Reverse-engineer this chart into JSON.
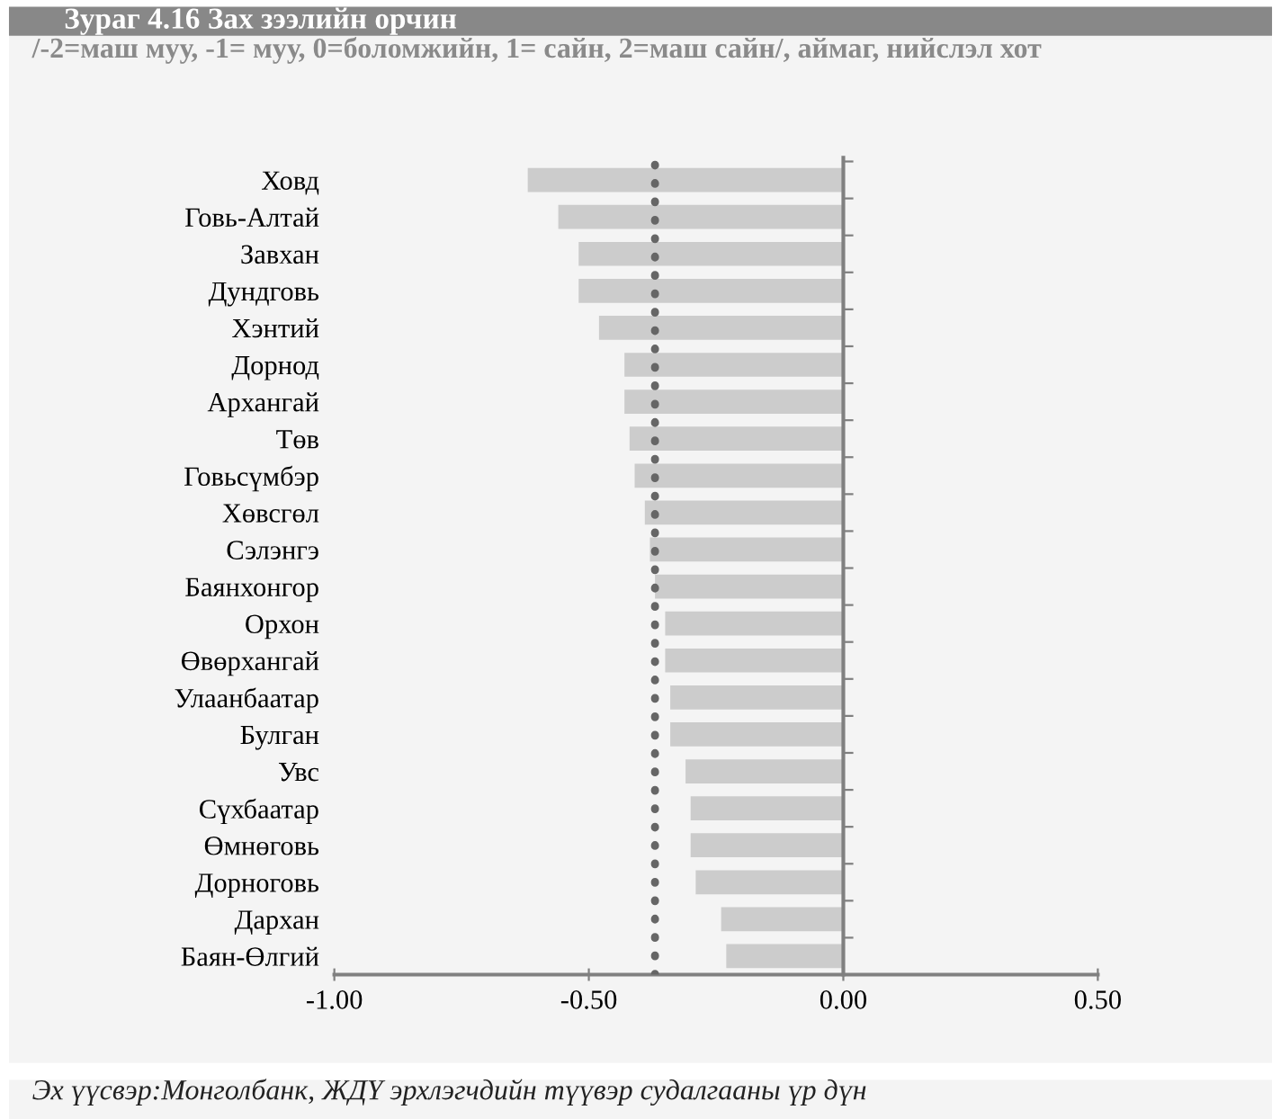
{
  "chart_data": {
    "type": "bar",
    "orientation": "horizontal",
    "title": "Зураг 4.16 Зах зээлийн орчин",
    "subtitle": "/-2=маш муу, -1= муу, 0=боломжийн, 1= сайн, 2=маш сайн/, аймаг, нийслэл хот",
    "categories": [
      "Ховд",
      "Говь-Алтай",
      "Завхан",
      "Дундговь",
      "Хэнтий",
      "Дорнод",
      "Архангай",
      "Төв",
      "Говьсүмбэр",
      "Хөвсгөл",
      "Сэлэнгэ",
      "Баянхонгор",
      "Орхон",
      "Өвөрхангай",
      "Улаанбаатар",
      "Булган",
      "Увс",
      "Сүхбаатар",
      "Өмнөговь",
      "Дорноговь",
      "Дархан",
      "Баян-Өлгий"
    ],
    "values": [
      -0.62,
      -0.56,
      -0.52,
      -0.52,
      -0.48,
      -0.43,
      -0.43,
      -0.42,
      -0.41,
      -0.39,
      -0.38,
      -0.37,
      -0.35,
      -0.35,
      -0.34,
      -0.34,
      -0.31,
      -0.3,
      -0.3,
      -0.29,
      -0.24,
      -0.23
    ],
    "color": "#cccccc",
    "xlim": [
      -1.0,
      0.5
    ],
    "xticks": [
      {
        "value": -1.0,
        "label": "-1.00"
      },
      {
        "value": -0.5,
        "label": "-0.50"
      },
      {
        "value": 0.0,
        "label": "0.00"
      },
      {
        "value": 0.5,
        "label": "0.50"
      }
    ],
    "ref_lines": [
      {
        "axis": "x",
        "value": -0.37,
        "label": null,
        "color": "#666666",
        "line_style": "dotted"
      }
    ],
    "legend": false,
    "annotations": [
      "Эх үүсвэр:Монголбанк, ЖДҮ эрхлэгчдийн түүвэр судалгааны үр дүн"
    ]
  }
}
